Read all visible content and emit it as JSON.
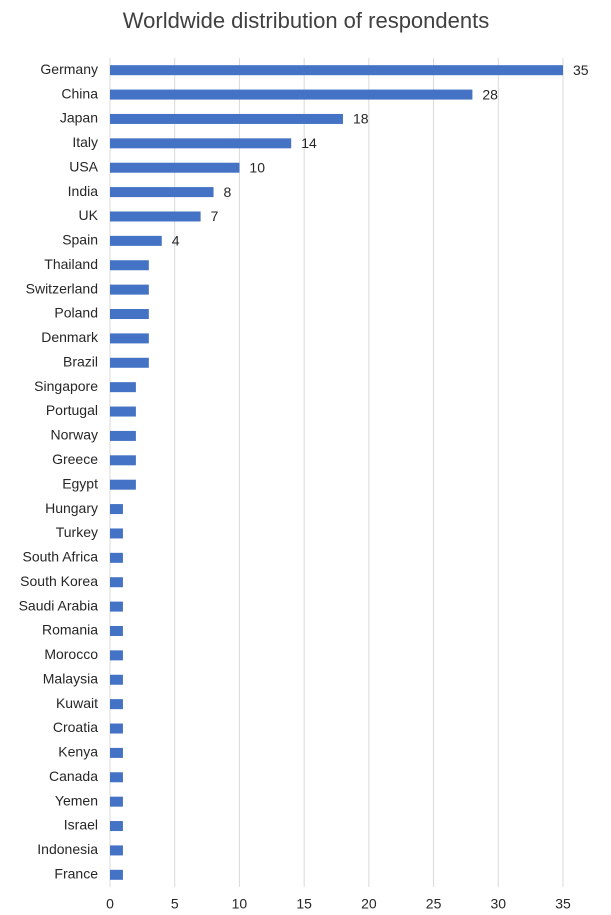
{
  "chart_data": {
    "type": "barh",
    "title": "Worldwide distribution of respondents",
    "categories": [
      "Germany",
      "China",
      "Japan",
      "Italy",
      "USA",
      "India",
      "UK",
      "Spain",
      "Thailand",
      "Switzerland",
      "Poland",
      "Denmark",
      "Brazil",
      "Singapore",
      "Portugal",
      "Norway",
      "Greece",
      "Egypt",
      "Hungary",
      "Turkey",
      "South Africa",
      "South Korea",
      "Saudi Arabia",
      "Romania",
      "Morocco",
      "Malaysia",
      "Kuwait",
      "Croatia",
      "Kenya",
      "Canada",
      "Yemen",
      "Israel",
      "Indonesia",
      "France"
    ],
    "values": [
      35,
      28,
      18,
      14,
      10,
      8,
      7,
      4,
      3,
      3,
      3,
      3,
      3,
      2,
      2,
      2,
      2,
      2,
      1,
      1,
      1,
      1,
      1,
      1,
      1,
      1,
      1,
      1,
      1,
      1,
      1,
      1,
      1,
      1
    ],
    "value_labels": [
      "35",
      "28",
      "18",
      "14",
      "10",
      "8",
      "7",
      "4",
      null,
      null,
      null,
      null,
      null,
      null,
      null,
      null,
      null,
      null,
      null,
      null,
      null,
      null,
      null,
      null,
      null,
      null,
      null,
      null,
      null,
      null,
      null,
      null,
      null,
      null
    ],
    "color": "#4472c4",
    "xlim": [
      0,
      35
    ],
    "xticks": [
      0,
      5,
      10,
      15,
      20,
      25,
      30,
      35
    ],
    "grid": true
  }
}
